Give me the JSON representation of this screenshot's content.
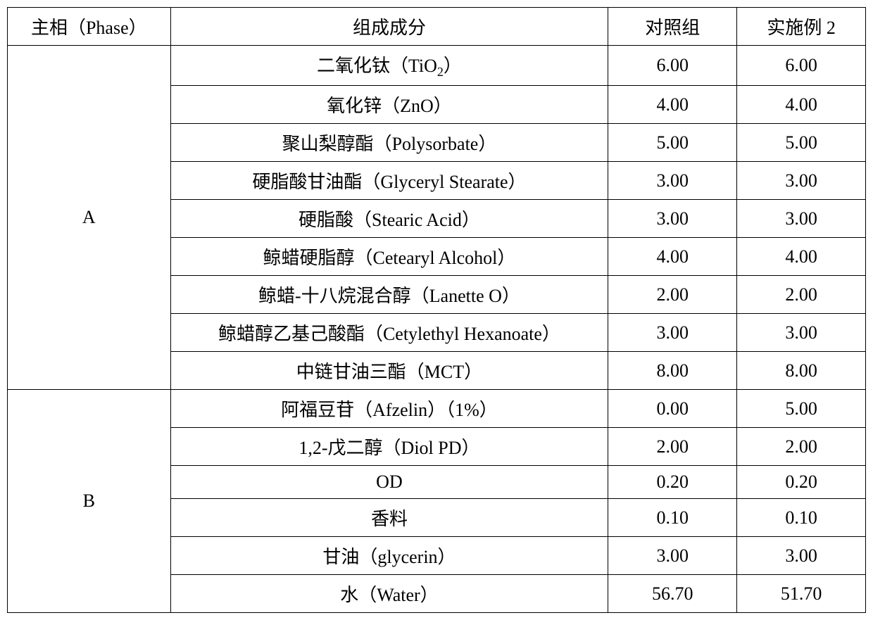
{
  "table": {
    "border_color": "#000000",
    "background_color": "#ffffff",
    "text_color": "#000000",
    "font_size": 26,
    "headers": {
      "phase": "主相（Phase）",
      "ingredient": "组成成分",
      "control": "对照组",
      "example": "实施例 2"
    },
    "phase_a_label": "A",
    "phase_b_label": "B",
    "rows_a": [
      {
        "ingredient_html": "二氧化钛（TiO<span class=\"sub\">2</span>）",
        "control": "6.00",
        "example": "6.00"
      },
      {
        "ingredient": "氧化锌（ZnO）",
        "control": "4.00",
        "example": "4.00"
      },
      {
        "ingredient": "聚山梨醇酯（Polysorbate）",
        "control": "5.00",
        "example": "5.00"
      },
      {
        "ingredient": "硬脂酸甘油酯（Glyceryl Stearate）",
        "control": "3.00",
        "example": "3.00"
      },
      {
        "ingredient": "硬脂酸（Stearic Acid）",
        "control": "3.00",
        "example": "3.00"
      },
      {
        "ingredient": "鲸蜡硬脂醇（Cetearyl Alcohol）",
        "control": "4.00",
        "example": "4.00"
      },
      {
        "ingredient": "鲸蜡-十八烷混合醇（Lanette O）",
        "control": "2.00",
        "example": "2.00"
      },
      {
        "ingredient": "鲸蜡醇乙基己酸酯（Cetylethyl Hexanoate）",
        "control": "3.00",
        "example": "3.00"
      },
      {
        "ingredient": "中链甘油三酯（MCT）",
        "control": "8.00",
        "example": "8.00"
      }
    ],
    "rows_b": [
      {
        "ingredient": "阿福豆苷（Afzelin）（1%）",
        "control": "0.00",
        "example": "5.00"
      },
      {
        "ingredient": "1,2-戊二醇（Diol PD）",
        "control": "2.00",
        "example": "2.00"
      },
      {
        "ingredient": "OD",
        "control": "0.20",
        "example": "0.20"
      },
      {
        "ingredient": "香料",
        "control": "0.10",
        "example": "0.10"
      },
      {
        "ingredient": "甘油（glycerin）",
        "control": "3.00",
        "example": "3.00"
      },
      {
        "ingredient": "水（Water）",
        "control": "56.70",
        "example": "51.70"
      }
    ]
  }
}
